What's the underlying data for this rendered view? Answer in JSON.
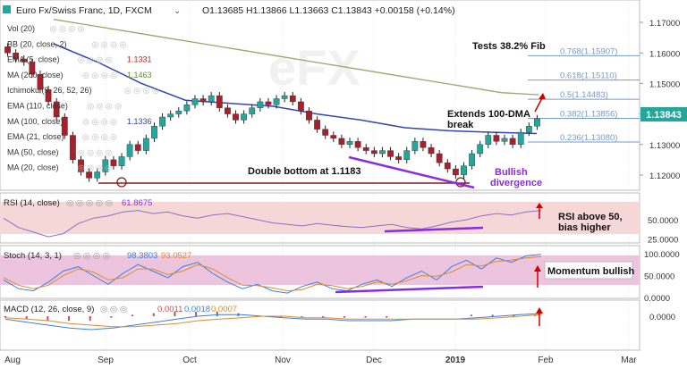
{
  "header": {
    "symbol": "Euro Fx/Swiss Franc, 1D, FXCM",
    "ohlc": "O1.13685  H1.13866  L1.13663  C1.13843  +0.00158 (+0.14%)"
  },
  "colors": {
    "up": "#26a69a",
    "down": "#a8202a",
    "candle_wick": "#222222",
    "ma100": "#3344bb",
    "ma200": "#8dad6b",
    "fib": "#7799cc",
    "purple": "#8a2be2",
    "annotation_red": "#d00000",
    "support": "#8b1a1a",
    "rsi_line": "#8b6fc9",
    "rsi_band": "#f5d7d7",
    "stoch_band": "#ecc4dd",
    "stoch_k": "#3b7fe0",
    "stoch_d": "#e08a2b",
    "macd_line": "#3b7fe0",
    "macd_signal": "#e08a2b",
    "macd_hist": "#c0504d",
    "price_tag": "#26a69a"
  },
  "indicators": [
    {
      "label": "Vol (20)"
    },
    {
      "label": "BB (20, close, 2)"
    },
    {
      "label": "EMA (5, close)",
      "value": "1.1331"
    },
    {
      "label": "MA (200, close)",
      "value": "1.1463"
    },
    {
      "label": "Ichimoku (9, 26, 52, 26)"
    },
    {
      "label": "EMA (110, close)"
    },
    {
      "label": "MA (100, close)",
      "value": "1.1336"
    },
    {
      "label": "EMA (21, close)"
    },
    {
      "label": "MA (50, close)"
    },
    {
      "label": "MA (20, close)"
    }
  ],
  "annotations": {
    "fib_title": "Tests 38.2% Fib",
    "extends_line1": "Extends 100-DMA",
    "extends_line2": "break",
    "double_bottom": "Double bottom at 1.1183",
    "bullish_line1": "Bullish",
    "bullish_line2": "divergence",
    "rsi_line1": "RSI above 50,",
    "rsi_line2": "bias higher",
    "momentum": "Momentum bullish"
  },
  "panels": {
    "rsi": {
      "label": "RSI (14, close)",
      "value": "61.8675"
    },
    "stoch": {
      "label": "Stoch (14, 3, 1)",
      "k": "98.3803",
      "d": "93.0527"
    },
    "macd": {
      "label": "MACD (12, 26, close, 9)",
      "v1": "0.0011",
      "v2": "0.0018",
      "v3": "0.0007"
    }
  },
  "chart_data": [
    {
      "type": "candlestick",
      "title": "Euro Fx/Swiss Franc, 1D, FXCM",
      "ylim": [
        1.115,
        1.175
      ],
      "yticks": [
        "1.17000",
        "1.16000",
        "1.15000",
        "1.14000",
        "1.13000",
        "1.12000"
      ],
      "xticks": [
        "Aug",
        "Sep",
        "Oct",
        "Nov",
        "Dec",
        "2019",
        "Feb",
        "Mar"
      ],
      "last_price": "1.13843",
      "fib_levels": [
        {
          "label": "0.768(1.15907)",
          "value": 1.15907
        },
        {
          "label": "0.618(1.15110)",
          "value": 1.1511
        },
        {
          "label": "0.5(1.14483)",
          "value": 1.14483
        },
        {
          "label": "0.382(1.13856)",
          "value": 1.13856
        },
        {
          "label": "0.236(1.13080)",
          "value": 1.1308
        }
      ],
      "support_level": 1.1183,
      "ma200": [
        1.171,
        1.169,
        1.167,
        1.165,
        1.163,
        1.161,
        1.159,
        1.157,
        1.155,
        1.153,
        1.151,
        1.149,
        1.147,
        1.1463
      ],
      "ma100": [
        1.163,
        1.157,
        1.15,
        1.1445,
        1.1435,
        1.1425,
        1.14,
        1.138,
        1.1355,
        1.1345,
        1.134,
        1.1336
      ],
      "close": [
        1.16,
        1.158,
        1.157,
        1.153,
        1.148,
        1.144,
        1.139,
        1.133,
        1.125,
        1.121,
        1.119,
        1.121,
        1.125,
        1.123,
        1.126,
        1.13,
        1.128,
        1.132,
        1.136,
        1.139,
        1.14,
        1.141,
        1.143,
        1.145,
        1.144,
        1.146,
        1.142,
        1.14,
        1.138,
        1.14,
        1.142,
        1.144,
        1.143,
        1.145,
        1.146,
        1.144,
        1.141,
        1.138,
        1.135,
        1.133,
        1.132,
        1.13,
        1.131,
        1.129,
        1.128,
        1.127,
        1.128,
        1.126,
        1.125,
        1.128,
        1.131,
        1.129,
        1.127,
        1.124,
        1.122,
        1.12,
        1.123,
        1.127,
        1.13,
        1.133,
        1.131,
        1.132,
        1.13,
        1.134,
        1.136,
        1.13843
      ]
    },
    {
      "type": "line",
      "title": "RSI (14, close)",
      "ylim": [
        20,
        80
      ],
      "yticks": [
        "50.0000",
        "25.0000"
      ],
      "band": [
        30,
        70
      ],
      "values": [
        52,
        40,
        34,
        28,
        32,
        45,
        52,
        55,
        60,
        62,
        58,
        60,
        55,
        52,
        56,
        58,
        54,
        50,
        46,
        44,
        42,
        45,
        43,
        41,
        40,
        42,
        44,
        40,
        38,
        42,
        47,
        50,
        55,
        58,
        56,
        60,
        61.8675
      ]
    },
    {
      "type": "line",
      "title": "Stoch (14, 3, 1)",
      "ylim": [
        0,
        110
      ],
      "yticks": [
        "100.0000",
        "50.0000",
        "0.0000"
      ],
      "band": [
        20,
        80
      ],
      "k": [
        40,
        20,
        15,
        35,
        60,
        70,
        50,
        30,
        55,
        75,
        60,
        45,
        70,
        80,
        55,
        35,
        20,
        30,
        15,
        10,
        25,
        35,
        20,
        15,
        30,
        40,
        25,
        45,
        60,
        40,
        70,
        85,
        65,
        90,
        80,
        95,
        98.3803
      ],
      "d": [
        45,
        28,
        20,
        28,
        50,
        65,
        58,
        40,
        45,
        65,
        65,
        52,
        60,
        75,
        65,
        45,
        28,
        27,
        22,
        15,
        18,
        30,
        27,
        20,
        25,
        35,
        30,
        38,
        50,
        48,
        58,
        75,
        72,
        82,
        85,
        90,
        93.0527
      ]
    },
    {
      "type": "line",
      "title": "MACD (12, 26, close, 9)",
      "ylim": [
        -0.012,
        0.012
      ],
      "yticks": [
        "0.0000"
      ],
      "macd": [
        -0.002,
        -0.004,
        -0.006,
        -0.008,
        -0.009,
        -0.008,
        -0.006,
        -0.004,
        -0.002,
        0.0,
        0.001,
        0.001,
        0.0,
        -0.001,
        -0.002,
        -0.002,
        -0.003,
        -0.003,
        -0.003,
        -0.002,
        -0.002,
        -0.002,
        -0.001,
        0.0,
        0.001,
        0.0018
      ],
      "signal": [
        -0.001,
        -0.002,
        -0.003,
        -0.005,
        -0.006,
        -0.007,
        -0.007,
        -0.006,
        -0.005,
        -0.003,
        -0.002,
        -0.001,
        0.0,
        0.0,
        -0.001,
        -0.001,
        -0.002,
        -0.002,
        -0.002,
        -0.002,
        -0.002,
        -0.002,
        -0.002,
        -0.001,
        0.0,
        0.0011
      ]
    }
  ]
}
